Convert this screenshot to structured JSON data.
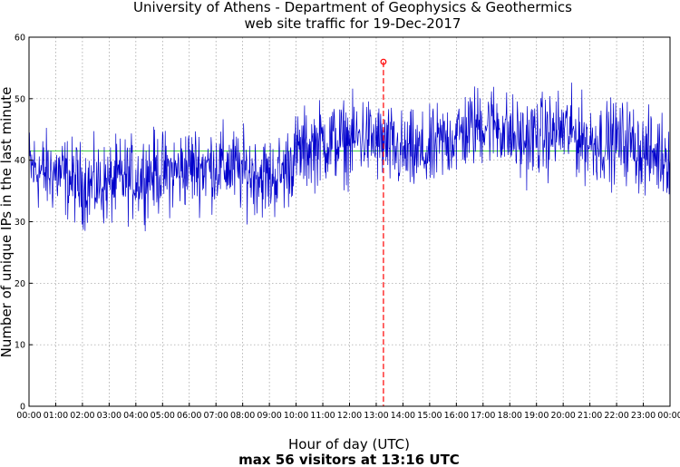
{
  "chart_data": {
    "type": "line",
    "title": "University of Athens - Department of Geophysics & Geothermics",
    "subtitle": "web site traffic for 19-Dec-2017",
    "xlabel": "Hour of day (UTC)",
    "ylabel": "Number of unique IPs in the last minute",
    "caption": "max 56 visitors at 13:16 UTC",
    "x_ticks": [
      "00:00",
      "01:00",
      "02:00",
      "03:00",
      "04:00",
      "05:00",
      "06:00",
      "07:00",
      "08:00",
      "09:00",
      "10:00",
      "11:00",
      "12:00",
      "13:00",
      "14:00",
      "15:00",
      "16:00",
      "17:00",
      "18:00",
      "19:00",
      "20:00",
      "21:00",
      "22:00",
      "23:00",
      "00:00"
    ],
    "y_ticks": [
      "0",
      "10",
      "20",
      "30",
      "40",
      "50",
      "60"
    ],
    "xlim": [
      0,
      24
    ],
    "ylim": [
      0,
      60
    ],
    "grid": true,
    "series": [
      {
        "color": "#0000cc",
        "x": [
          0,
          0.5,
          1,
          1.5,
          2,
          2.5,
          3,
          3.5,
          4,
          4.5,
          5,
          5.5,
          6,
          6.5,
          7,
          7.5,
          8,
          8.5,
          9,
          9.5,
          10,
          10.5,
          11,
          11.5,
          12,
          12.5,
          13,
          13.5,
          14,
          14.5,
          15,
          15.5,
          16,
          16.5,
          17,
          17.5,
          18,
          18.5,
          19,
          19.5,
          20,
          20.5,
          21,
          21.5,
          22,
          22.5,
          23,
          23.5,
          24
        ],
        "values": [
          39,
          38,
          38,
          37,
          36,
          36,
          36,
          37,
          37,
          38,
          38,
          38,
          39,
          39,
          39,
          39,
          38,
          38,
          37,
          38,
          41,
          42,
          43,
          43,
          43,
          44,
          43,
          42,
          41,
          41,
          41,
          43,
          44,
          45,
          46,
          46,
          44,
          43,
          44,
          44,
          45,
          44,
          43,
          43,
          43,
          43,
          41,
          41,
          41
        ]
      }
    ],
    "reference_line": {
      "value": 41.5,
      "color": "#00bb00"
    },
    "max_marker": {
      "x": 13.27,
      "y": 56,
      "color": "#ff0000"
    }
  }
}
